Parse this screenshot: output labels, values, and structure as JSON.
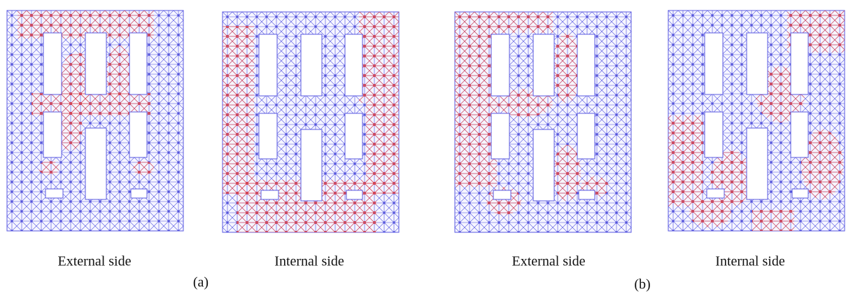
{
  "figure": {
    "panels": [
      {
        "label": "(a)",
        "sides": [
          "External side",
          "Internal side"
        ]
      },
      {
        "label": "(b)",
        "sides": [
          "External side",
          "Internal side"
        ]
      }
    ]
  }
}
